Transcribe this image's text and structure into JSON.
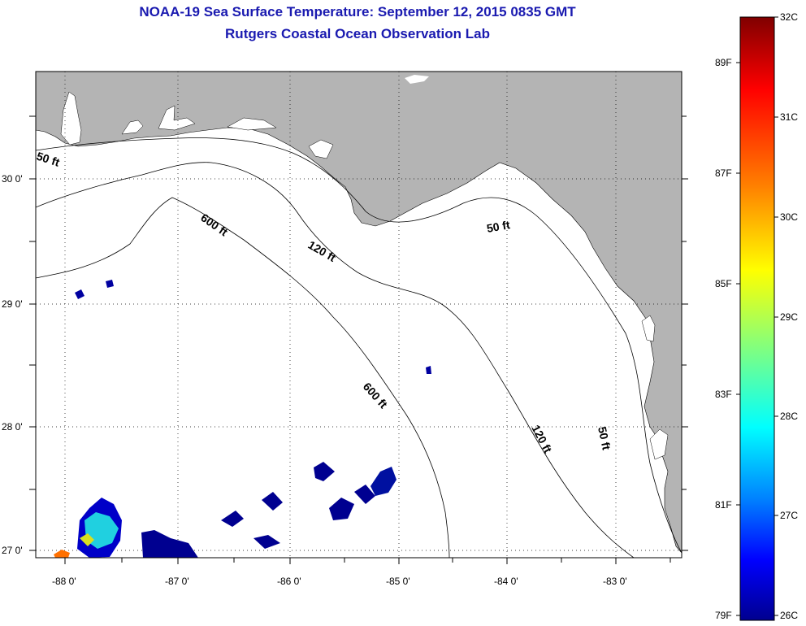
{
  "title": {
    "line1": "NOAA-19 Sea Surface Temperature:  September 12, 2015 0835 GMT",
    "line2": "Rutgers Coastal Ocean Observation Lab"
  },
  "map": {
    "lon_labels": [
      "-88 0'",
      "-87 0'",
      "-86 0'",
      "-85 0'",
      "-84 0'",
      "-83 0'"
    ],
    "lat_labels": [
      "30 0'",
      "29 0'",
      "28 0'",
      "27 0'"
    ],
    "land_color": "#b4b4b4",
    "contours": [
      {
        "label": "50 ft"
      },
      {
        "label": "120 ft"
      },
      {
        "label": "600 ft"
      },
      {
        "label": "50 ft"
      },
      {
        "label": "120 ft"
      },
      {
        "label": "600 ft"
      },
      {
        "label": "50 ft"
      }
    ]
  },
  "colorbar": {
    "celsius_labels": [
      "32C",
      "31C",
      "30C",
      "29C",
      "28C",
      "27C",
      "26C"
    ],
    "fahrenheit_labels": [
      "89F",
      "87F",
      "85F",
      "83F",
      "81F",
      "79F"
    ],
    "colors": [
      "#800000",
      "#ff0000",
      "#ff8000",
      "#ffff00",
      "#80ff80",
      "#00ffff",
      "#0080ff",
      "#0000ff",
      "#00008f"
    ]
  }
}
